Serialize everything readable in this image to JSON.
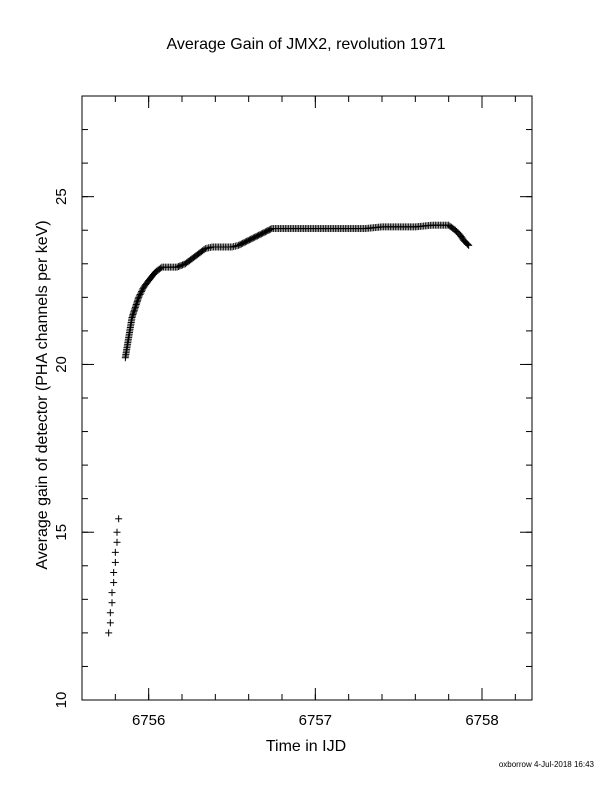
{
  "chart_data": {
    "type": "scatter",
    "title": "Average Gain of JMX2, revolution 1971",
    "xlabel": "Time in IJD",
    "ylabel": "Average gain of detector (PHA channels per keV)",
    "xlim": [
      6755.6,
      6758.3
    ],
    "ylim": [
      10,
      28
    ],
    "xticks": [
      6756,
      6757,
      6758
    ],
    "yticks": [
      10,
      15,
      20,
      25
    ],
    "x_minor_step": 0.2,
    "y_minor_step": 1,
    "marker": "plus",
    "grid": false,
    "series": [
      {
        "x": [
          6755.76,
          6755.77,
          6755.77,
          6755.78,
          6755.78,
          6755.79,
          6755.79,
          6755.8,
          6755.8,
          6755.81,
          6755.81,
          6755.82,
          6755.86,
          6755.87,
          6755.88,
          6755.89,
          6755.9,
          6755.92,
          6755.94,
          6755.97,
          6756.0,
          6756.04,
          6756.08,
          6756.12,
          6756.17,
          6756.22,
          6756.26,
          6756.3,
          6756.34,
          6756.38,
          6756.42,
          6756.46,
          6756.5,
          6756.54,
          6756.58,
          6756.62,
          6756.66,
          6756.7,
          6756.74,
          6756.8,
          6756.9,
          6757.0,
          6757.1,
          6757.2,
          6757.3,
          6757.4,
          6757.5,
          6757.6,
          6757.7,
          6757.76,
          6757.8,
          6757.84,
          6757.87,
          6757.89,
          6757.91,
          6757.92
        ],
        "y": [
          12.0,
          12.3,
          12.6,
          12.9,
          13.2,
          13.5,
          13.8,
          14.1,
          14.4,
          14.7,
          15.0,
          15.4,
          20.2,
          20.5,
          20.8,
          21.1,
          21.4,
          21.7,
          22.0,
          22.3,
          22.5,
          22.75,
          22.9,
          22.9,
          22.9,
          23.0,
          23.15,
          23.3,
          23.45,
          23.5,
          23.5,
          23.5,
          23.5,
          23.55,
          23.65,
          23.75,
          23.85,
          23.95,
          24.05,
          24.05,
          24.05,
          24.05,
          24.05,
          24.05,
          24.05,
          24.1,
          24.1,
          24.1,
          24.15,
          24.15,
          24.15,
          24.0,
          23.85,
          23.7,
          23.6,
          23.55
        ]
      }
    ]
  },
  "footer": "oxborrow  4-Jul-2018 16:43"
}
